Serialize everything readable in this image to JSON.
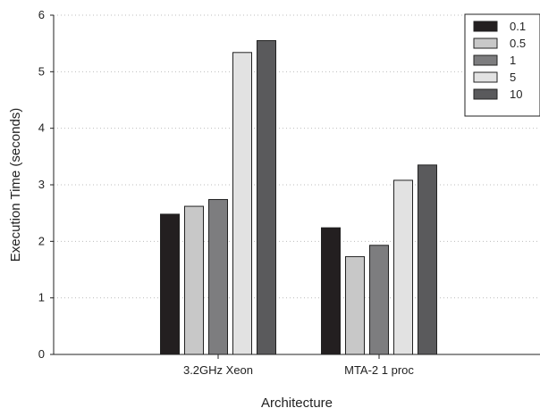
{
  "chart_data": {
    "type": "bar",
    "categories": [
      "3.2GHz Xeon",
      "MTA-2 1 proc"
    ],
    "series": [
      {
        "name": "0.1",
        "color": "#231f20",
        "values": [
          2.48,
          2.24
        ]
      },
      {
        "name": "0.5",
        "color": "#c8c8c8",
        "values": [
          2.62,
          1.73
        ]
      },
      {
        "name": "1",
        "color": "#7d7d7f",
        "values": [
          2.74,
          1.93
        ]
      },
      {
        "name": "5",
        "color": "#e2e2e2",
        "values": [
          5.34,
          3.08
        ]
      },
      {
        "name": "10",
        "color": "#5a5a5c",
        "values": [
          5.55,
          3.35
        ]
      }
    ],
    "yticks": [
      "0",
      "1",
      "2",
      "3",
      "4",
      "5",
      "6"
    ],
    "ylim": [
      0,
      6
    ],
    "xlabel": "Architecture",
    "ylabel": "Execution Time (seconds)",
    "grid": "horizontal dotted",
    "legend_position": "top-right"
  }
}
